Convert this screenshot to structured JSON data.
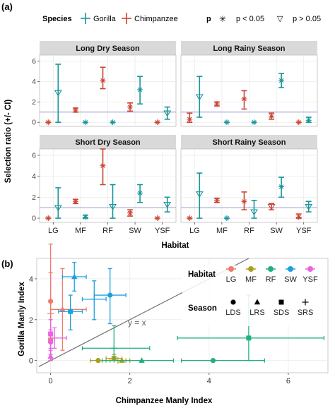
{
  "colors": {
    "gorilla": "#17969a",
    "chimpanzee": "#cc4433",
    "LG": "#f07a6e",
    "MF": "#a8a020",
    "RF": "#22b07c",
    "SW": "#1e9fe0",
    "YSF": "#e864e0",
    "refline": "#8c8cc8",
    "strip": "#d9d9d9",
    "grid": "#ebebeb",
    "panel_bg": "#ffffff",
    "diag": "#6e6e6e"
  },
  "panel_a": {
    "label": "(a)",
    "legend": {
      "species_title": "Species",
      "species": [
        "Gorilla",
        "Chimpanzee"
      ],
      "p_title": "p",
      "p_items": [
        {
          "symbol": "✳",
          "label": "p < 0.05"
        },
        {
          "symbol": "▽",
          "label": "p > 0.05"
        }
      ]
    },
    "ylabel": "Selection ratio (+/- CI)",
    "xlabel": "Habitat",
    "yticks": [
      "0",
      "2",
      "4",
      "6"
    ],
    "reference_line": 1
  },
  "panel_b": {
    "label": "(b)",
    "xlabel": "Chimpanzee Manly Index",
    "ylabel": "Gorilla Manly Index",
    "xticks": [
      "0",
      "2",
      "4",
      "6"
    ],
    "yticks": [
      "0",
      "2",
      "4"
    ],
    "diag_label": "y = x",
    "habitat_title": "Habitat",
    "habitats": [
      "LG",
      "MF",
      "RF",
      "SW",
      "YSF"
    ],
    "season_title": "Season",
    "seasons": [
      {
        "code": "LDS",
        "shape": "circle"
      },
      {
        "code": "LRS",
        "shape": "triangle"
      },
      {
        "code": "SDS",
        "shape": "square"
      },
      {
        "code": "SRS",
        "shape": "plus"
      }
    ]
  },
  "chart_data": [
    {
      "type": "scatter",
      "subtype": "error-bar facets",
      "facets": [
        "Long Dry Season",
        "Long Rainy Season",
        "Short Dry Season",
        "Short Rainy Season"
      ],
      "categories": [
        "LG",
        "MF",
        "RF",
        "SW",
        "YSF"
      ],
      "ylim": [
        -0.4,
        6.6
      ],
      "reference_line": 1,
      "series": [
        {
          "name": "Gorilla",
          "data": {
            "Long Dry Season": [
              {
                "x": "LG",
                "y": 2.9,
                "lo": 0.0,
                "hi": 5.7,
                "p": "ns"
              },
              {
                "x": "MF",
                "y": 0.0,
                "lo": 0.0,
                "hi": 0.0,
                "p": "sig"
              },
              {
                "x": "RF",
                "y": 0.0,
                "lo": 0.0,
                "hi": 0.0,
                "p": "sig"
              },
              {
                "x": "SW",
                "y": 3.2,
                "lo": 1.8,
                "hi": 4.5,
                "p": "sig"
              },
              {
                "x": "YSF",
                "y": 0.9,
                "lo": 0.3,
                "hi": 1.5,
                "p": "ns"
              }
            ],
            "Long Rainy Season": [
              {
                "x": "LG",
                "y": 2.5,
                "lo": 0.5,
                "hi": 4.5,
                "p": "ns"
              },
              {
                "x": "MF",
                "y": 0.0,
                "lo": 0.0,
                "hi": 0.0,
                "p": "sig"
              },
              {
                "x": "RF",
                "y": 0.0,
                "lo": 0.0,
                "hi": 0.0,
                "p": "sig"
              },
              {
                "x": "SW",
                "y": 4.1,
                "lo": 3.4,
                "hi": 4.8,
                "p": "sig"
              },
              {
                "x": "YSF",
                "y": 0.2,
                "lo": 0.0,
                "hi": 0.5,
                "p": "sig"
              }
            ],
            "Short Dry Season": [
              {
                "x": "LG",
                "y": 1.0,
                "lo": 0.0,
                "hi": 2.9,
                "p": "ns"
              },
              {
                "x": "MF",
                "y": 0.1,
                "lo": 0.0,
                "hi": 0.3,
                "p": "sig"
              },
              {
                "x": "RF",
                "y": 1.1,
                "lo": 0.0,
                "hi": 3.2,
                "p": "ns"
              },
              {
                "x": "SW",
                "y": 2.4,
                "lo": 1.5,
                "hi": 3.2,
                "p": "sig"
              },
              {
                "x": "YSF",
                "y": 1.3,
                "lo": 0.6,
                "hi": 2.0,
                "p": "ns"
              }
            ],
            "Short Rainy Season": [
              {
                "x": "LG",
                "y": 2.3,
                "lo": 0.0,
                "hi": 4.3,
                "p": "ns"
              },
              {
                "x": "MF",
                "y": 0.0,
                "lo": 0.0,
                "hi": 0.0,
                "p": "sig"
              },
              {
                "x": "RF",
                "y": 0.6,
                "lo": 0.0,
                "hi": 1.7,
                "p": "ns"
              },
              {
                "x": "SW",
                "y": 3.0,
                "lo": 2.0,
                "hi": 3.9,
                "p": "sig"
              },
              {
                "x": "YSF",
                "y": 1.1,
                "lo": 0.6,
                "hi": 1.6,
                "p": "ns"
              }
            ]
          }
        },
        {
          "name": "Chimpanzee",
          "data": {
            "Long Dry Season": [
              {
                "x": "LG",
                "y": 0.0,
                "lo": 0.0,
                "hi": 0.0,
                "p": "sig"
              },
              {
                "x": "MF",
                "y": 1.2,
                "lo": 1.0,
                "hi": 1.4,
                "p": "sig"
              },
              {
                "x": "RF",
                "y": 4.1,
                "lo": 3.3,
                "hi": 5.4,
                "p": "sig"
              },
              {
                "x": "SW",
                "y": 1.5,
                "lo": 1.1,
                "hi": 1.9,
                "p": "sig"
              },
              {
                "x": "YSF",
                "y": 0.0,
                "lo": 0.0,
                "hi": 0.0,
                "p": "sig"
              }
            ],
            "Long Rainy Season": [
              {
                "x": "LG",
                "y": 0.3,
                "lo": 0.0,
                "hi": 0.9,
                "p": "sig"
              },
              {
                "x": "MF",
                "y": 1.8,
                "lo": 1.6,
                "hi": 2.0,
                "p": "sig"
              },
              {
                "x": "RF",
                "y": 2.3,
                "lo": 1.3,
                "hi": 3.1,
                "p": "sig"
              },
              {
                "x": "SW",
                "y": 0.6,
                "lo": 0.3,
                "hi": 0.9,
                "p": "sig"
              },
              {
                "x": "YSF",
                "y": 0.0,
                "lo": 0.0,
                "hi": 0.0,
                "p": "sig"
              }
            ],
            "Short Dry Season": [
              {
                "x": "LG",
                "y": 0.0,
                "lo": 0.0,
                "hi": 0.0,
                "p": "sig"
              },
              {
                "x": "MF",
                "y": 1.6,
                "lo": 1.4,
                "hi": 1.8,
                "p": "sig"
              },
              {
                "x": "RF",
                "y": 5.0,
                "lo": 3.2,
                "hi": 6.9,
                "p": "sig"
              },
              {
                "x": "SW",
                "y": 0.5,
                "lo": 0.2,
                "hi": 0.8,
                "p": "sig"
              },
              {
                "x": "YSF",
                "y": 0.0,
                "lo": 0.0,
                "hi": 0.0,
                "p": "sig"
              }
            ],
            "Short Rainy Season": [
              {
                "x": "LG",
                "y": 0.0,
                "lo": 0.0,
                "hi": 0.0,
                "p": "sig"
              },
              {
                "x": "MF",
                "y": 1.7,
                "lo": 1.5,
                "hi": 1.9,
                "p": "sig"
              },
              {
                "x": "RF",
                "y": 1.6,
                "lo": 0.8,
                "hi": 2.5,
                "p": "sig"
              },
              {
                "x": "SW",
                "y": 1.1,
                "lo": 0.8,
                "hi": 1.4,
                "p": "ns"
              },
              {
                "x": "YSF",
                "y": 0.1,
                "lo": 0.0,
                "hi": 0.4,
                "p": "sig"
              }
            ]
          }
        }
      ]
    },
    {
      "type": "scatter",
      "subtype": "two-axis error bars",
      "xlabel": "Chimpanzee Manly Index",
      "ylabel": "Gorilla Manly Index",
      "xlim": [
        -0.35,
        7.0
      ],
      "ylim": [
        -0.6,
        5.0
      ],
      "diagonal": "y = x",
      "points": [
        {
          "habitat": "LG",
          "season": "LDS",
          "x": 0.0,
          "y": 2.9,
          "xlo": 0.0,
          "xhi": 0.0,
          "ylo": 0.0,
          "yhi": 5.7
        },
        {
          "habitat": "LG",
          "season": "LRS",
          "x": 0.3,
          "y": 2.5,
          "xlo": 0.0,
          "xhi": 0.9,
          "ylo": 0.5,
          "yhi": 4.5
        },
        {
          "habitat": "LG",
          "season": "SDS",
          "x": 0.0,
          "y": 1.0,
          "xlo": 0.0,
          "xhi": 0.0,
          "ylo": 0.0,
          "yhi": 2.9
        },
        {
          "habitat": "LG",
          "season": "SRS",
          "x": 0.0,
          "y": 2.3,
          "xlo": 0.0,
          "xhi": 0.0,
          "ylo": 0.0,
          "yhi": 4.3
        },
        {
          "habitat": "MF",
          "season": "LDS",
          "x": 1.2,
          "y": 0.0,
          "xlo": 1.0,
          "xhi": 1.4,
          "ylo": 0.0,
          "yhi": 0.0
        },
        {
          "habitat": "MF",
          "season": "LRS",
          "x": 1.8,
          "y": 0.0,
          "xlo": 1.6,
          "xhi": 2.0,
          "ylo": 0.0,
          "yhi": 0.0
        },
        {
          "habitat": "MF",
          "season": "SDS",
          "x": 1.6,
          "y": 0.1,
          "xlo": 1.4,
          "xhi": 1.8,
          "ylo": 0.0,
          "yhi": 0.3
        },
        {
          "habitat": "MF",
          "season": "SRS",
          "x": 1.7,
          "y": 0.0,
          "xlo": 1.5,
          "xhi": 1.9,
          "ylo": 0.0,
          "yhi": 0.0
        },
        {
          "habitat": "RF",
          "season": "LDS",
          "x": 4.1,
          "y": 0.0,
          "xlo": 3.3,
          "xhi": 5.4,
          "ylo": 0.0,
          "yhi": 0.0
        },
        {
          "habitat": "RF",
          "season": "LRS",
          "x": 2.3,
          "y": 0.0,
          "xlo": 1.3,
          "xhi": 3.1,
          "ylo": 0.0,
          "yhi": 0.0
        },
        {
          "habitat": "RF",
          "season": "SDS",
          "x": 5.0,
          "y": 1.1,
          "xlo": 3.2,
          "xhi": 6.9,
          "ylo": 0.0,
          "yhi": 3.2
        },
        {
          "habitat": "RF",
          "season": "SRS",
          "x": 1.6,
          "y": 0.6,
          "xlo": 0.8,
          "xhi": 2.5,
          "ylo": 0.0,
          "yhi": 1.7
        },
        {
          "habitat": "SW",
          "season": "LDS",
          "x": 1.5,
          "y": 3.2,
          "xlo": 1.1,
          "xhi": 1.9,
          "ylo": 1.8,
          "yhi": 4.5
        },
        {
          "habitat": "SW",
          "season": "LRS",
          "x": 0.6,
          "y": 4.1,
          "xlo": 0.3,
          "xhi": 0.9,
          "ylo": 3.4,
          "yhi": 4.8
        },
        {
          "habitat": "SW",
          "season": "SDS",
          "x": 0.5,
          "y": 2.4,
          "xlo": 0.2,
          "xhi": 0.8,
          "ylo": 1.5,
          "yhi": 3.2
        },
        {
          "habitat": "SW",
          "season": "SRS",
          "x": 1.1,
          "y": 3.0,
          "xlo": 0.8,
          "xhi": 1.4,
          "ylo": 2.0,
          "yhi": 3.9
        },
        {
          "habitat": "YSF",
          "season": "LDS",
          "x": 0.0,
          "y": 0.9,
          "xlo": 0.0,
          "xhi": 0.0,
          "ylo": 0.3,
          "yhi": 1.5
        },
        {
          "habitat": "YSF",
          "season": "LRS",
          "x": 0.0,
          "y": 0.2,
          "xlo": 0.0,
          "xhi": 0.0,
          "ylo": 0.0,
          "yhi": 0.5
        },
        {
          "habitat": "YSF",
          "season": "SDS",
          "x": 0.0,
          "y": 1.3,
          "xlo": 0.0,
          "xhi": 0.0,
          "ylo": 0.6,
          "yhi": 2.0
        },
        {
          "habitat": "YSF",
          "season": "SRS",
          "x": 0.1,
          "y": 1.1,
          "xlo": 0.0,
          "xhi": 0.4,
          "ylo": 0.6,
          "yhi": 1.6
        }
      ]
    }
  ]
}
